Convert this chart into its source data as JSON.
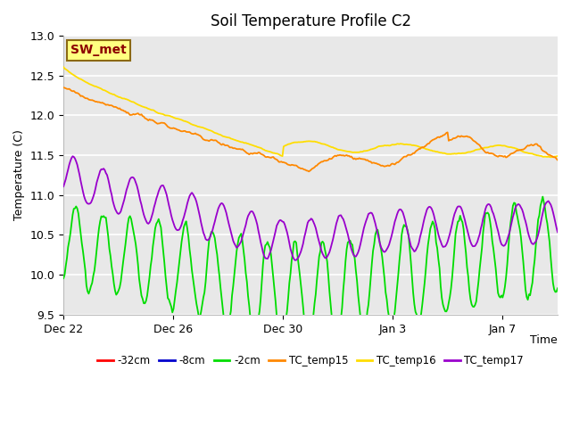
{
  "title": "Soil Temperature Profile C2",
  "xlabel_right": "Time",
  "ylabel": "Temperature (C)",
  "ylim": [
    9.5,
    13.0
  ],
  "xlim": [
    0,
    18
  ],
  "background_color": "#ffffff",
  "plot_bg_color": "#e8e8e8",
  "grid_color": "#ffffff",
  "annotation_text": "SW_met",
  "annotation_bg": "#ffff80",
  "annotation_border": "#8B6914",
  "annotation_text_color": "#8B0000",
  "colors": {
    "neg32cm": "#ff0000",
    "neg8cm": "#0000cd",
    "neg2cm": "#00dd00",
    "TC_temp15": "#ff8800",
    "TC_temp16": "#ffdd00",
    "TC_temp17": "#9900cc"
  },
  "labels": {
    "neg32cm": "-32cm",
    "neg8cm": "-8cm",
    "neg2cm": "-2cm",
    "TC_temp15": "TC_temp15",
    "TC_temp16": "TC_temp16",
    "TC_temp17": "TC_temp17"
  },
  "xtick_positions": [
    0,
    4,
    8,
    12,
    16
  ],
  "xtick_labels": [
    "Dec 22",
    "Dec 26",
    "Dec 30",
    "Jan 3",
    "Jan 7"
  ],
  "ytick_positions": [
    9.5,
    10.0,
    10.5,
    11.0,
    11.5,
    12.0,
    12.5,
    13.0
  ]
}
